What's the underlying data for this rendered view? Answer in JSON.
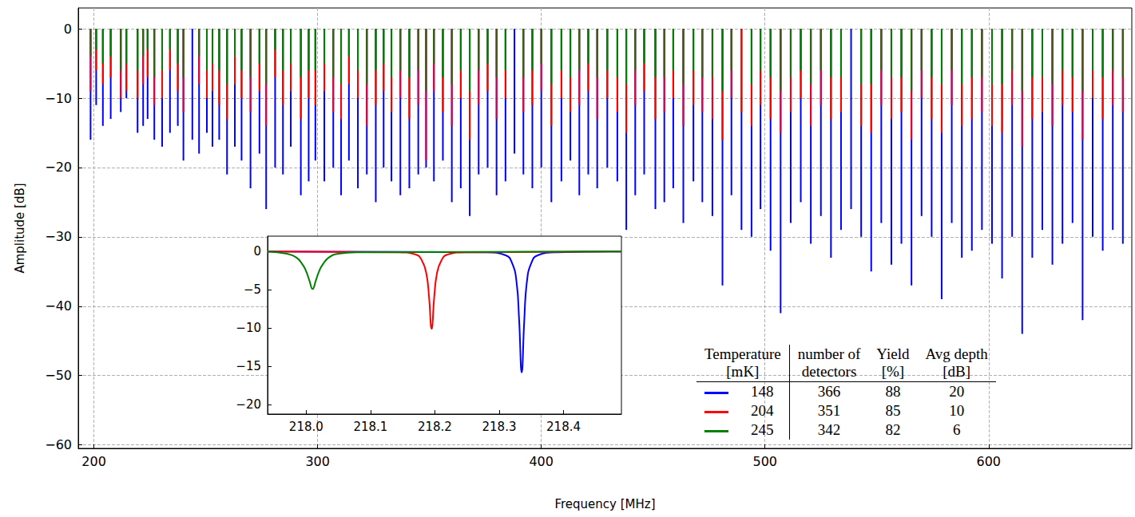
{
  "chart_data": [
    {
      "type": "bar",
      "xlabel": "Frequency [MHz]",
      "ylabel": "Amplitude [dB]",
      "xlim": [
        193,
        664
      ],
      "ylim": [
        -60.5,
        3
      ],
      "xticks": [
        200,
        300,
        400,
        500,
        600
      ],
      "yticks": [
        {
          "value": -60,
          "label": "−60"
        },
        {
          "value": -50,
          "label": "−50"
        },
        {
          "value": -40,
          "label": "−40"
        },
        {
          "value": -30,
          "label": "−30"
        },
        {
          "value": -20,
          "label": "−20"
        },
        {
          "value": -10,
          "label": "−10"
        },
        0
      ],
      "grid": true,
      "legend": "lower right",
      "x": [
        198.5,
        201,
        204,
        207.5,
        212,
        214.5,
        219.5,
        222,
        224,
        227,
        230.5,
        234,
        237.5,
        240,
        244,
        247,
        250.5,
        253,
        256,
        259.5,
        263,
        266,
        270,
        274,
        277,
        281,
        284.5,
        288,
        292.5,
        296,
        299,
        303,
        307,
        310.5,
        314,
        318,
        322,
        326,
        329.5,
        333,
        337,
        341,
        345,
        348.5,
        352,
        356,
        360,
        364,
        368,
        372,
        376,
        380,
        384,
        388,
        392,
        396,
        400,
        404.5,
        409,
        413,
        417,
        421,
        425,
        429.5,
        434,
        438,
        442,
        446,
        451,
        455,
        459,
        463.5,
        468,
        472,
        476.5,
        481,
        485,
        489.5,
        494,
        498,
        502.5,
        507,
        511.5,
        516,
        520.5,
        525,
        529.5,
        534,
        538.5,
        543,
        547.5,
        552,
        556.5,
        561,
        565.5,
        570,
        574.5,
        579,
        583.5,
        588,
        592.5,
        597,
        601.5,
        606,
        610.5,
        615,
        619.5,
        624,
        628.5,
        633,
        637.5,
        642,
        646.5,
        651,
        655.5,
        660
      ],
      "series": [
        {
          "color": "#0000ff",
          "values": [
            -16,
            -11,
            -14,
            -13,
            -12,
            -10,
            -15,
            -14,
            -13,
            -16,
            -17,
            -15,
            -14,
            -19,
            -16,
            -18,
            -15,
            -17,
            -16,
            -21,
            -17,
            -19,
            -23,
            -18,
            -26,
            -20,
            -21,
            -17,
            -24,
            -22,
            -19,
            -22,
            -20,
            -24,
            -19,
            -23,
            -21,
            -25,
            -20,
            -22,
            -24,
            -23,
            -21,
            -20,
            -22,
            -19,
            -25,
            -23,
            -27,
            -21,
            -20,
            -24,
            -22,
            -18,
            -21,
            -23,
            -20,
            -25,
            -22,
            -19,
            -24,
            -21,
            -23,
            -20,
            -22,
            -29,
            -24,
            -21,
            -26,
            -25,
            -23,
            -28,
            -22,
            -25,
            -27,
            -37,
            -24,
            -29,
            -30,
            -26,
            -32,
            -41,
            -28,
            -25,
            -31,
            -27,
            -33,
            -29,
            -26,
            -30,
            -35,
            -28,
            -34,
            -31,
            -37,
            -27,
            -30,
            -39,
            -28,
            -33,
            -32,
            -29,
            -31,
            -36,
            -30,
            -44,
            -33,
            -29,
            -34,
            -31,
            -28,
            -42,
            -30,
            -32,
            -29,
            -31
          ]
        },
        {
          "color": "#ff0000",
          "values": [
            -9,
            -6,
            -8,
            -7,
            -10,
            -9,
            -10,
            -8,
            -7,
            -11,
            -10,
            -6,
            -9,
            -12,
            null,
            -8,
            -10,
            -9,
            -11,
            -13,
            -8,
            -10,
            -12,
            -9,
            -14,
            -7,
            -11,
            -9,
            -13,
            -10,
            -11,
            -9,
            -12,
            -13,
            -8,
            -10,
            -14,
            -11,
            -9,
            -12,
            -10,
            -13,
            -11,
            -19,
            -9,
            -12,
            -14,
            -10,
            -16,
            -11,
            -9,
            -13,
            -10,
            null,
            -12,
            -11,
            -9,
            -14,
            -10,
            -12,
            -11,
            -9,
            -13,
            -10,
            -12,
            -15,
            -11,
            -9,
            -13,
            -12,
            -10,
            -14,
            -11,
            -12,
            -13,
            -16,
            -10,
            -12,
            -14,
            -11,
            -13,
            -15,
            -12,
            -10,
            -14,
            -11,
            -13,
            -12,
            null,
            -14,
            -15,
            -11,
            -13,
            -12,
            -16,
            -10,
            -13,
            -15,
            -11,
            -14,
            -13,
            -12,
            -14,
            -15,
            -11,
            -17,
            -13,
            -12,
            -14,
            -11,
            -12,
            -16,
            -10,
            -13,
            -11,
            -12
          ]
        },
        {
          "color": "#008000",
          "values": [
            -4,
            -3,
            -5,
            -4,
            -6,
            -5,
            -6,
            -4,
            -3,
            -7,
            -6,
            -3,
            -5,
            -7,
            null,
            -4,
            -6,
            -5,
            -6,
            -8,
            -4,
            -6,
            -7,
            -5,
            -8,
            -3,
            -6,
            -5,
            -7,
            -6,
            -6,
            -5,
            -7,
            -8,
            -4,
            -6,
            -8,
            -6,
            -5,
            -7,
            -6,
            -7,
            -6,
            -9,
            -5,
            -7,
            -8,
            -6,
            -9,
            -6,
            -5,
            -7,
            -6,
            null,
            -7,
            -6,
            -5,
            -8,
            -6,
            -7,
            -6,
            -5,
            -7,
            -6,
            -7,
            -8,
            -6,
            -5,
            -7,
            -7,
            -6,
            -8,
            -6,
            -7,
            -7,
            -9,
            -6,
            null,
            -8,
            -6,
            -7,
            -9,
            -7,
            -6,
            -8,
            -6,
            -7,
            -7,
            null,
            -8,
            -8,
            -6,
            -7,
            -7,
            -9,
            -6,
            -7,
            -8,
            -6,
            -8,
            -7,
            -7,
            -8,
            -8,
            -6,
            -9,
            -7,
            -7,
            -8,
            -6,
            -7,
            -9,
            -6,
            -7,
            -6,
            -7
          ]
        }
      ],
      "legend_table": {
        "columns": [
          [
            "Temperature",
            "[mK]"
          ],
          [
            "number of",
            "detectors"
          ],
          [
            "Yield",
            "[%]"
          ],
          [
            "Avg depth",
            "[dB]"
          ]
        ],
        "rows": [
          [
            148,
            366,
            88,
            20
          ],
          [
            204,
            351,
            85,
            10
          ],
          [
            245,
            342,
            82,
            6
          ]
        ]
      }
    },
    {
      "type": "line",
      "xlim": [
        217.94,
        218.49
      ],
      "ylim": [
        -21.25,
        2
      ],
      "xticks": [
        {
          "value": 218,
          "label": "218.0"
        },
        218.1,
        218.2,
        218.3,
        218.4
      ],
      "yticks": [
        {
          "value": -20,
          "label": "−20"
        },
        {
          "value": -15,
          "label": "−15"
        },
        {
          "value": -10,
          "label": "−10"
        },
        {
          "value": -5,
          "label": "−5"
        },
        0
      ],
      "grid": false,
      "series": [
        {
          "color": "#0000ff",
          "x": [
            217.94,
            218.28,
            218.31,
            218.32,
            218.327,
            218.331,
            218.335,
            218.339,
            218.343,
            218.35,
            218.36,
            218.39,
            218.49
          ],
          "values": [
            0,
            -0.1,
            -0.5,
            -1.5,
            -4,
            -9,
            -15.8,
            -9,
            -4,
            -1.5,
            -0.5,
            -0.1,
            0
          ]
        },
        {
          "color": "#ff0000",
          "x": [
            217.94,
            218.14,
            218.17,
            218.18,
            218.187,
            218.191,
            218.195,
            218.199,
            218.203,
            218.21,
            218.22,
            218.25,
            218.49
          ],
          "values": [
            0,
            -0.1,
            -0.4,
            -1.2,
            -3,
            -6,
            -10.1,
            -6,
            -3,
            -1.2,
            -0.4,
            -0.1,
            0
          ]
        },
        {
          "color": "#008000",
          "x": [
            217.94,
            217.97,
            217.985,
            217.995,
            218.0,
            218.005,
            218.01,
            218.015,
            218.02,
            218.025,
            218.035,
            218.05,
            218.08,
            218.49
          ],
          "values": [
            0,
            -0.3,
            -0.8,
            -1.8,
            -2.6,
            -3.8,
            -4.9,
            -3.8,
            -2.6,
            -1.8,
            -0.8,
            -0.3,
            -0.1,
            0
          ]
        }
      ]
    }
  ]
}
